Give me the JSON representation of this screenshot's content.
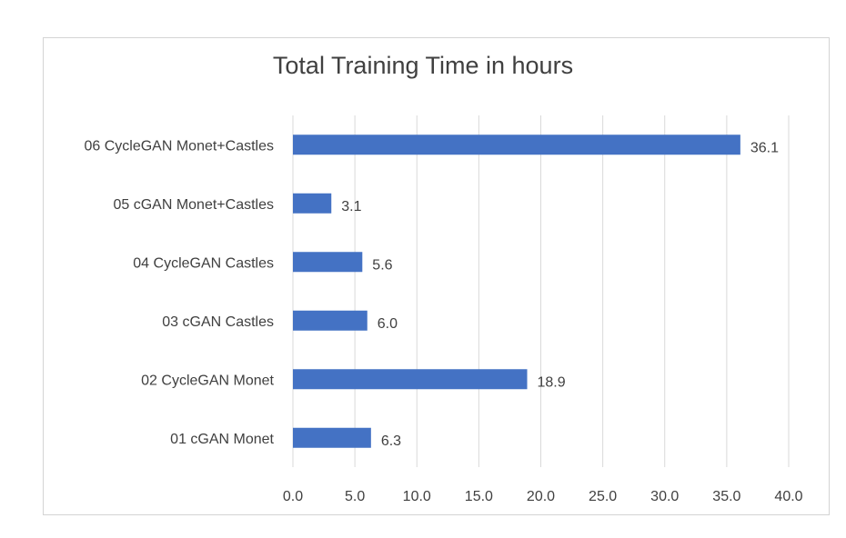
{
  "chart_data": {
    "type": "bar",
    "orientation": "horizontal",
    "title": "Total Training Time in hours",
    "xlabel": "",
    "ylabel": "",
    "categories": [
      "06 CycleGAN Monet+Castles",
      "05 cGAN Monet+Castles",
      "04 CycleGAN Castles",
      "03 cGAN Castles",
      "02 CycleGAN Monet",
      "01 cGAN Monet"
    ],
    "values": [
      36.1,
      3.1,
      5.6,
      6.0,
      18.9,
      6.3
    ],
    "data_labels": [
      "36.1",
      "3.1",
      "5.6",
      "6.0",
      "18.9",
      "6.3"
    ],
    "xlim": [
      0,
      40
    ],
    "xticks": [
      "0.0",
      "5.0",
      "10.0",
      "15.0",
      "20.0",
      "25.0",
      "30.0",
      "35.0",
      "40.0"
    ],
    "grid": "vertical",
    "legend": "none",
    "bar_color": "#4472c4"
  }
}
